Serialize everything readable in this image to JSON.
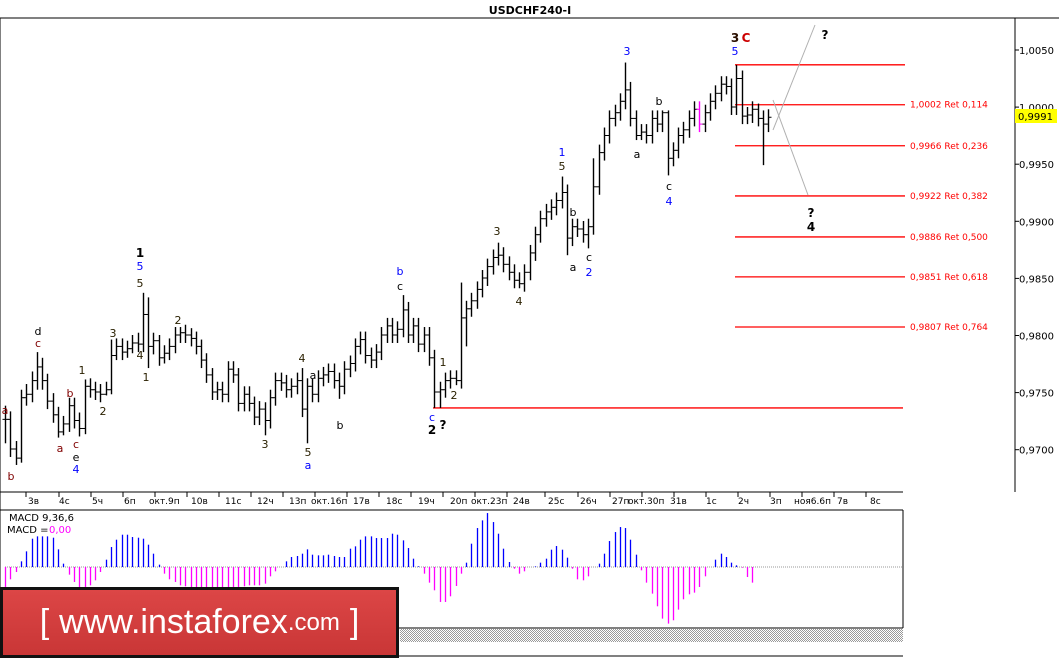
{
  "title": "USDCHF240-I",
  "current_price": "0,9991",
  "colors": {
    "bull_hist": "#0000ff",
    "bear_hist": "#ff00ff",
    "fib": "#ff0000",
    "price_tag": "#ffff00",
    "highlight_bar": "#ff00ff"
  },
  "price_axis": [
    "1,0050",
    "1,0000",
    "0,9950",
    "0,9900",
    "0,9850",
    "0,9800",
    "0,9750",
    "0,9700"
  ],
  "time_axis": [
    "3в",
    "4с",
    "5ч",
    "6п",
    "окт.9п",
    "10в",
    "11с",
    "12ч",
    "13п",
    "окт.16п",
    "17в",
    "18с",
    "19ч",
    "20п",
    "окт.23п",
    "24в",
    "25с",
    "26ч",
    "27п",
    "окт.30п",
    "31в",
    "1с",
    "2ч",
    "3п",
    "ноя6.6п",
    "7в",
    "8с"
  ],
  "fib_levels": [
    {
      "price": 1.0037,
      "label": ""
    },
    {
      "price": 1.0002,
      "label": "1,0002 Ret 0,114"
    },
    {
      "price": 0.9966,
      "label": "0,9966 Ret 0,236"
    },
    {
      "price": 0.9922,
      "label": "0,9922 Ret 0,382"
    },
    {
      "price": 0.9886,
      "label": "0,9886 Ret 0,500"
    },
    {
      "price": 0.9851,
      "label": "0,9851 Ret 0,618"
    },
    {
      "price": 0.9807,
      "label": "0,9807 Ret 0,764"
    }
  ],
  "support_level": 0.9736,
  "macd": {
    "title": "MACD 9,36,6",
    "value_label": "MACD =",
    "value": "0,00"
  },
  "logo": {
    "open": "[",
    "main": "www.instaforex",
    "domain": ".com",
    "close": "]"
  },
  "wave_labels": [
    {
      "text": "a",
      "color": "#800000"
    },
    {
      "text": "b",
      "color": "#800000"
    },
    {
      "text": "d",
      "color": "#000"
    },
    {
      "text": "c",
      "color": "#800000"
    },
    {
      "text": "a",
      "color": "#800000"
    },
    {
      "text": "b",
      "color": "#800000"
    },
    {
      "text": "c",
      "color": "#800000"
    },
    {
      "text": "e",
      "color": "#000"
    },
    {
      "text": "4",
      "color": "#0000ff"
    },
    {
      "text": "1",
      "color": "#2a2000"
    },
    {
      "text": "2",
      "color": "#2a2000"
    },
    {
      "text": "3",
      "color": "#2a2000"
    },
    {
      "text": "1",
      "color": "#000",
      "bold": true
    },
    {
      "text": "5",
      "color": "#0000ff"
    },
    {
      "text": "5",
      "color": "#2a2000"
    },
    {
      "text": "4",
      "color": "#2a2000"
    },
    {
      "text": "1",
      "color": "#2a2000"
    },
    {
      "text": "2",
      "color": "#2a2000"
    },
    {
      "text": "3",
      "color": "#2a2000"
    },
    {
      "text": "4",
      "color": "#2a2000"
    },
    {
      "text": "a",
      "color": "#000"
    },
    {
      "text": "5",
      "color": "#2a2000"
    },
    {
      "text": "a",
      "color": "#0000ff"
    },
    {
      "text": "b",
      "color": "#000"
    },
    {
      "text": "b",
      "color": "#0000ff"
    },
    {
      "text": "c",
      "color": "#000"
    },
    {
      "text": "c",
      "color": "#0000ff"
    },
    {
      "text": "2",
      "color": "#000",
      "bold": true
    },
    {
      "text": "?",
      "color": "#000",
      "bold": true
    },
    {
      "text": "1",
      "color": "#2a2000"
    },
    {
      "text": "2",
      "color": "#2a2000"
    },
    {
      "text": "3",
      "color": "#2a2000"
    },
    {
      "text": "4",
      "color": "#2a2000"
    },
    {
      "text": "b",
      "color": "#000"
    },
    {
      "text": "a",
      "color": "#000"
    },
    {
      "text": "c",
      "color": "#000"
    },
    {
      "text": "2",
      "color": "#0000ff"
    },
    {
      "text": "1",
      "color": "#0000ff"
    },
    {
      "text": "5",
      "color": "#2a2000"
    },
    {
      "text": "3",
      "color": "#0000ff"
    },
    {
      "text": "a",
      "color": "#000"
    },
    {
      "text": "b",
      "color": "#000"
    },
    {
      "text": "c",
      "color": "#000"
    },
    {
      "text": "4",
      "color": "#0000ff"
    },
    {
      "text": "3",
      "color": "#2a1000",
      "bold": true
    },
    {
      "text": "C",
      "color": "#cc0000",
      "bold": true
    },
    {
      "text": "5",
      "color": "#0000ff"
    },
    {
      "text": "?",
      "color": "#000",
      "bold": true
    },
    {
      "text": "?",
      "color": "#000",
      "bold": true
    },
    {
      "text": "4",
      "color": "#000",
      "bold": true
    }
  ],
  "chart_data": {
    "type": "ohlc",
    "title": "USDCHF240-I",
    "ylim": [
      0.9665,
      1.008
    ],
    "highlight_bar_index": 131,
    "bars_hlc": [
      [
        0.9738,
        0.9705,
        0.9726
      ],
      [
        0.9733,
        0.9693,
        0.97
      ],
      [
        0.9707,
        0.9686,
        0.9692
      ],
      [
        0.9752,
        0.9688,
        0.9745
      ],
      [
        0.9757,
        0.9738,
        0.9748
      ],
      [
        0.9768,
        0.9741,
        0.976
      ],
      [
        0.9785,
        0.9752,
        0.9772
      ],
      [
        0.978,
        0.9752,
        0.976
      ],
      [
        0.9766,
        0.9735,
        0.9742
      ],
      [
        0.9749,
        0.9723,
        0.973
      ],
      [
        0.9737,
        0.971,
        0.9715
      ],
      [
        0.9729,
        0.9712,
        0.9722
      ],
      [
        0.9745,
        0.9715,
        0.9738
      ],
      [
        0.9745,
        0.9718,
        0.9725
      ],
      [
        0.9732,
        0.9711,
        0.9718
      ],
      [
        0.9761,
        0.9713,
        0.9755
      ],
      [
        0.9762,
        0.9745,
        0.9752
      ],
      [
        0.9759,
        0.9743,
        0.975
      ],
      [
        0.9757,
        0.9741,
        0.9748
      ],
      [
        0.9759,
        0.9747,
        0.9752
      ],
      [
        0.9796,
        0.9748,
        0.9782
      ],
      [
        0.9797,
        0.9778,
        0.979
      ],
      [
        0.9797,
        0.9778,
        0.9785
      ],
      [
        0.9795,
        0.978,
        0.9788
      ],
      [
        0.98,
        0.9784,
        0.9793
      ],
      [
        0.9802,
        0.9785,
        0.9792
      ],
      [
        0.9837,
        0.9785,
        0.9818
      ],
      [
        0.9833,
        0.9771,
        0.979
      ],
      [
        0.9802,
        0.9783,
        0.9795
      ],
      [
        0.98,
        0.9773,
        0.978
      ],
      [
        0.9791,
        0.9775,
        0.9784
      ],
      [
        0.9797,
        0.9778,
        0.979
      ],
      [
        0.9807,
        0.9784,
        0.98
      ],
      [
        0.9807,
        0.9793,
        0.9802
      ],
      [
        0.9809,
        0.9793,
        0.98
      ],
      [
        0.9806,
        0.979,
        0.9797
      ],
      [
        0.9803,
        0.9783,
        0.979
      ],
      [
        0.9796,
        0.9771,
        0.9778
      ],
      [
        0.9784,
        0.9758,
        0.9765
      ],
      [
        0.9771,
        0.9743,
        0.975
      ],
      [
        0.9759,
        0.9743,
        0.9752
      ],
      [
        0.9759,
        0.9741,
        0.9748
      ],
      [
        0.9777,
        0.9741,
        0.977
      ],
      [
        0.9777,
        0.9758,
        0.9765
      ],
      [
        0.9771,
        0.9733,
        0.974
      ],
      [
        0.9755,
        0.9733,
        0.9748
      ],
      [
        0.9755,
        0.9733,
        0.974
      ],
      [
        0.9746,
        0.9721,
        0.9728
      ],
      [
        0.9742,
        0.9721,
        0.9735
      ],
      [
        0.9741,
        0.9712,
        0.9725
      ],
      [
        0.9752,
        0.9718,
        0.9745
      ],
      [
        0.9767,
        0.9738,
        0.976
      ],
      [
        0.9767,
        0.9751,
        0.9758
      ],
      [
        0.9765,
        0.9745,
        0.9752
      ],
      [
        0.9762,
        0.9745,
        0.9755
      ],
      [
        0.9767,
        0.9748,
        0.976
      ],
      [
        0.9771,
        0.9728,
        0.9735
      ],
      [
        0.9762,
        0.9705,
        0.9755
      ],
      [
        0.9762,
        0.9741,
        0.9748
      ],
      [
        0.9769,
        0.9741,
        0.9762
      ],
      [
        0.9772,
        0.9755,
        0.9765
      ],
      [
        0.9775,
        0.9758,
        0.9768
      ],
      [
        0.9775,
        0.9753,
        0.976
      ],
      [
        0.9767,
        0.9744,
        0.9755
      ],
      [
        0.9777,
        0.9748,
        0.977
      ],
      [
        0.9782,
        0.9763,
        0.9775
      ],
      [
        0.9797,
        0.9768,
        0.979
      ],
      [
        0.9803,
        0.9783,
        0.9796
      ],
      [
        0.9803,
        0.9775,
        0.9782
      ],
      [
        0.9789,
        0.9771,
        0.9778
      ],
      [
        0.9792,
        0.9771,
        0.9785
      ],
      [
        0.9807,
        0.9778,
        0.98
      ],
      [
        0.9815,
        0.9793,
        0.9808
      ],
      [
        0.9815,
        0.9793,
        0.98
      ],
      [
        0.9812,
        0.9793,
        0.9805
      ],
      [
        0.9835,
        0.9798,
        0.9822
      ],
      [
        0.9829,
        0.9793,
        0.98
      ],
      [
        0.9815,
        0.9793,
        0.9808
      ],
      [
        0.9815,
        0.9785,
        0.9792
      ],
      [
        0.9807,
        0.9785,
        0.98
      ],
      [
        0.9807,
        0.9773,
        0.978
      ],
      [
        0.9787,
        0.9736,
        0.975
      ],
      [
        0.9759,
        0.9736,
        0.9752
      ],
      [
        0.9767,
        0.9745,
        0.976
      ],
      [
        0.9769,
        0.9753,
        0.9762
      ],
      [
        0.9769,
        0.9756,
        0.976
      ],
      [
        0.9846,
        0.9753,
        0.9815
      ],
      [
        0.983,
        0.979,
        0.9823
      ],
      [
        0.9837,
        0.9816,
        0.983
      ],
      [
        0.9847,
        0.9823,
        0.984
      ],
      [
        0.9857,
        0.9833,
        0.985
      ],
      [
        0.9867,
        0.9843,
        0.986
      ],
      [
        0.9875,
        0.9853,
        0.9868
      ],
      [
        0.9881,
        0.9861,
        0.987
      ],
      [
        0.9877,
        0.9855,
        0.9862
      ],
      [
        0.9869,
        0.9848,
        0.9855
      ],
      [
        0.9862,
        0.9841,
        0.9848
      ],
      [
        0.9855,
        0.9841,
        0.9845
      ],
      [
        0.9862,
        0.9838,
        0.9855
      ],
      [
        0.9879,
        0.9848,
        0.9872
      ],
      [
        0.9895,
        0.9865,
        0.9888
      ],
      [
        0.9909,
        0.9881,
        0.9902
      ],
      [
        0.9915,
        0.9895,
        0.9908
      ],
      [
        0.9919,
        0.9901,
        0.9912
      ],
      [
        0.9925,
        0.9905,
        0.9918
      ],
      [
        0.9939,
        0.9911,
        0.9925
      ],
      [
        0.9932,
        0.987,
        0.9885
      ],
      [
        0.9902,
        0.9878,
        0.9895
      ],
      [
        0.9902,
        0.9886,
        0.9893
      ],
      [
        0.99,
        0.9881,
        0.9888
      ],
      [
        0.9902,
        0.9876,
        0.9895
      ],
      [
        0.9955,
        0.9888,
        0.993
      ],
      [
        0.9967,
        0.9923,
        0.996
      ],
      [
        0.9982,
        0.9953,
        0.9975
      ],
      [
        0.9997,
        0.9968,
        0.999
      ],
      [
        1.0002,
        0.9983,
        0.9995
      ],
      [
        1.0012,
        0.9988,
        1.0005
      ],
      [
        1.0039,
        0.9998,
        1.0015
      ],
      [
        1.0022,
        0.9983,
        0.999
      ],
      [
        0.9997,
        0.9971,
        0.9975
      ],
      [
        0.9985,
        0.9971,
        0.9978
      ],
      [
        0.9985,
        0.9968,
        0.9975
      ],
      [
        0.9997,
        0.9968,
        0.999
      ],
      [
        0.9997,
        0.9978,
        0.9985
      ],
      [
        0.9997,
        0.9978,
        0.9995
      ],
      [
        0.9997,
        0.994,
        0.9955
      ],
      [
        0.9969,
        0.9948,
        0.9962
      ],
      [
        0.9982,
        0.9955,
        0.9975
      ],
      [
        0.9987,
        0.9968,
        0.998
      ],
      [
        0.9997,
        0.9973,
        0.999
      ],
      [
        1.0005,
        0.9983,
        0.9998
      ],
      [
        1.0005,
        0.9978,
        0.9985
      ],
      [
        1.0002,
        0.9978,
        0.9995
      ],
      [
        1.0012,
        0.9988,
        1.0005
      ],
      [
        1.0019,
        0.9998,
        1.0012
      ],
      [
        1.0027,
        1.0005,
        1.002
      ],
      [
        1.0027,
        1.0011,
        1.0018
      ],
      [
        1.0025,
        0.9993,
        1.0
      ],
      [
        1.0037,
        0.9993,
        1.0025
      ],
      [
        1.0032,
        0.9985,
        0.9992
      ],
      [
        1.0,
        0.9985,
        0.9993
      ],
      [
        1.0005,
        0.9986,
        0.9998
      ],
      [
        1.0003,
        0.9983,
        0.999
      ],
      [
        0.9997,
        0.9949,
        0.9985
      ],
      [
        0.9998,
        0.9978,
        0.9991
      ]
    ],
    "macd_histogram": [
      -0.6,
      -0.37,
      -0.15,
      0.17,
      0.47,
      0.85,
      0.92,
      0.92,
      0.92,
      0.88,
      0.53,
      0.1,
      -0.23,
      -0.45,
      -0.6,
      -0.6,
      -0.55,
      -0.4,
      -0.15,
      0.22,
      0.6,
      0.82,
      0.97,
      0.97,
      0.9,
      0.88,
      0.85,
      0.67,
      0.4,
      0.07,
      -0.2,
      -0.37,
      -0.45,
      -0.55,
      -0.58,
      -0.6,
      -0.62,
      -0.62,
      -0.62,
      -0.62,
      -0.62,
      -0.62,
      -0.62,
      -0.6,
      -0.6,
      -0.58,
      -0.55,
      -0.55,
      -0.55,
      -0.5,
      -0.28,
      -0.13,
      0.0,
      0.17,
      0.3,
      0.33,
      0.4,
      0.53,
      0.37,
      0.35,
      0.35,
      0.37,
      0.33,
      0.3,
      0.3,
      0.55,
      0.62,
      0.82,
      0.92,
      0.92,
      0.87,
      0.87,
      0.87,
      1.0,
      0.97,
      0.8,
      0.57,
      0.25,
      0.02,
      -0.2,
      -0.47,
      -0.7,
      -1.05,
      -1.05,
      -0.88,
      -0.57,
      -0.2,
      0.13,
      0.7,
      1.17,
      1.4,
      1.62,
      1.35,
      1.0,
      0.55,
      0.15,
      -0.05,
      -0.2,
      -0.13,
      0.0,
      0.02,
      0.13,
      0.25,
      0.52,
      0.63,
      0.52,
      0.28,
      -0.05,
      -0.37,
      -0.4,
      -0.28,
      0.0,
      0.1,
      0.4,
      0.78,
      1.05,
      1.2,
      1.17,
      0.82,
      0.37,
      -0.1,
      -0.47,
      -0.8,
      -1.18,
      -1.55,
      -1.7,
      -1.6,
      -1.28,
      -0.97,
      -0.82,
      -0.77,
      -0.6,
      -0.28,
      0.0,
      0.22,
      0.4,
      0.3,
      0.13,
      0.05,
      -0.02,
      -0.3,
      -0.47
    ]
  }
}
